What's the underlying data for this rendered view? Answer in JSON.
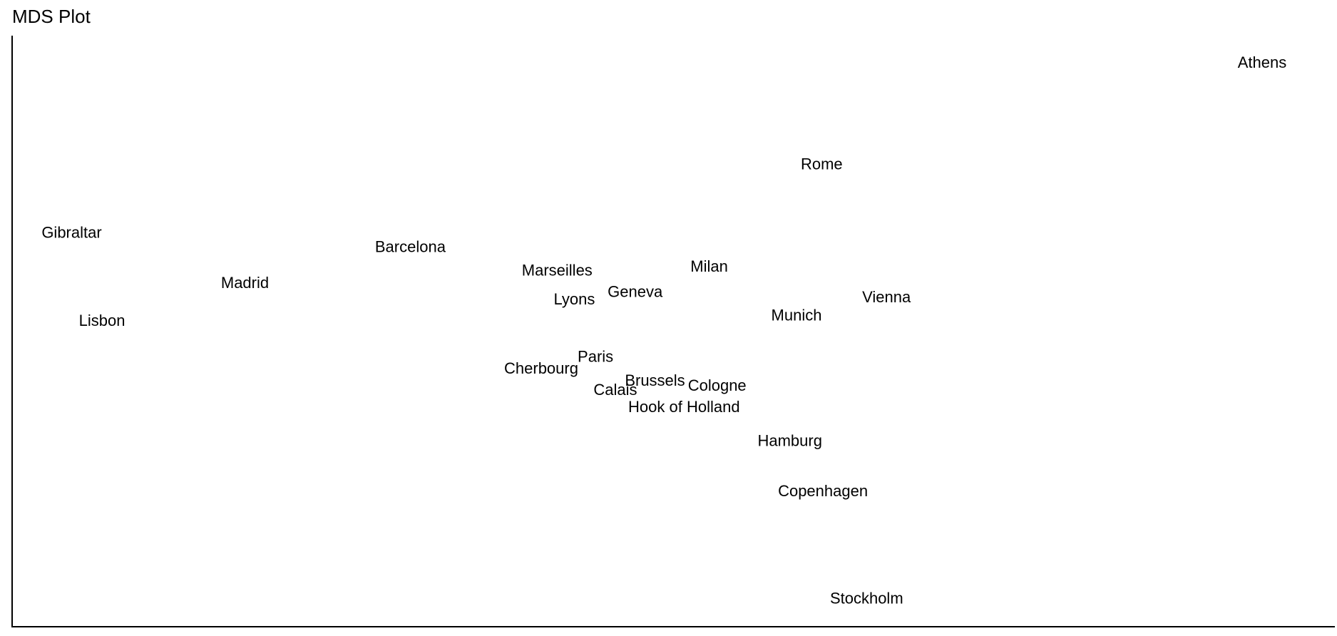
{
  "chart_data": {
    "type": "scatter",
    "title": "MDS Plot",
    "xlabel": "",
    "ylabel": "",
    "xlim": [
      0,
      1000
    ],
    "ylim": [
      0,
      1000
    ],
    "grid": false,
    "legend": "none",
    "points": [
      {
        "label": "Athens",
        "x": 945,
        "y": 953
      },
      {
        "label": "Rome",
        "x": 612,
        "y": 781
      },
      {
        "label": "Gibraltar",
        "x": 45,
        "y": 665
      },
      {
        "label": "Barcelona",
        "x": 301,
        "y": 641
      },
      {
        "label": "Marseilles",
        "x": 412,
        "y": 601
      },
      {
        "label": "Milan",
        "x": 527,
        "y": 608
      },
      {
        "label": "Madrid",
        "x": 176,
        "y": 580
      },
      {
        "label": "Geneva",
        "x": 471,
        "y": 565
      },
      {
        "label": "Lyons",
        "x": 425,
        "y": 552
      },
      {
        "label": "Vienna",
        "x": 661,
        "y": 556
      },
      {
        "label": "Munich",
        "x": 593,
        "y": 525
      },
      {
        "label": "Lisbon",
        "x": 68,
        "y": 516
      },
      {
        "label": "Paris",
        "x": 441,
        "y": 455
      },
      {
        "label": "Cherbourg",
        "x": 400,
        "y": 435
      },
      {
        "label": "Brussels",
        "x": 486,
        "y": 415
      },
      {
        "label": "Cologne",
        "x": 533,
        "y": 406
      },
      {
        "label": "Calais",
        "x": 456,
        "y": 399
      },
      {
        "label": "Hook of Holland",
        "x": 508,
        "y": 370
      },
      {
        "label": "Hamburg",
        "x": 588,
        "y": 313
      },
      {
        "label": "Copenhagen",
        "x": 613,
        "y": 228
      },
      {
        "label": "Stockholm",
        "x": 646,
        "y": 46
      }
    ],
    "colors": {
      "axis": "#000000",
      "text": "#000000",
      "background": "#ffffff"
    }
  }
}
